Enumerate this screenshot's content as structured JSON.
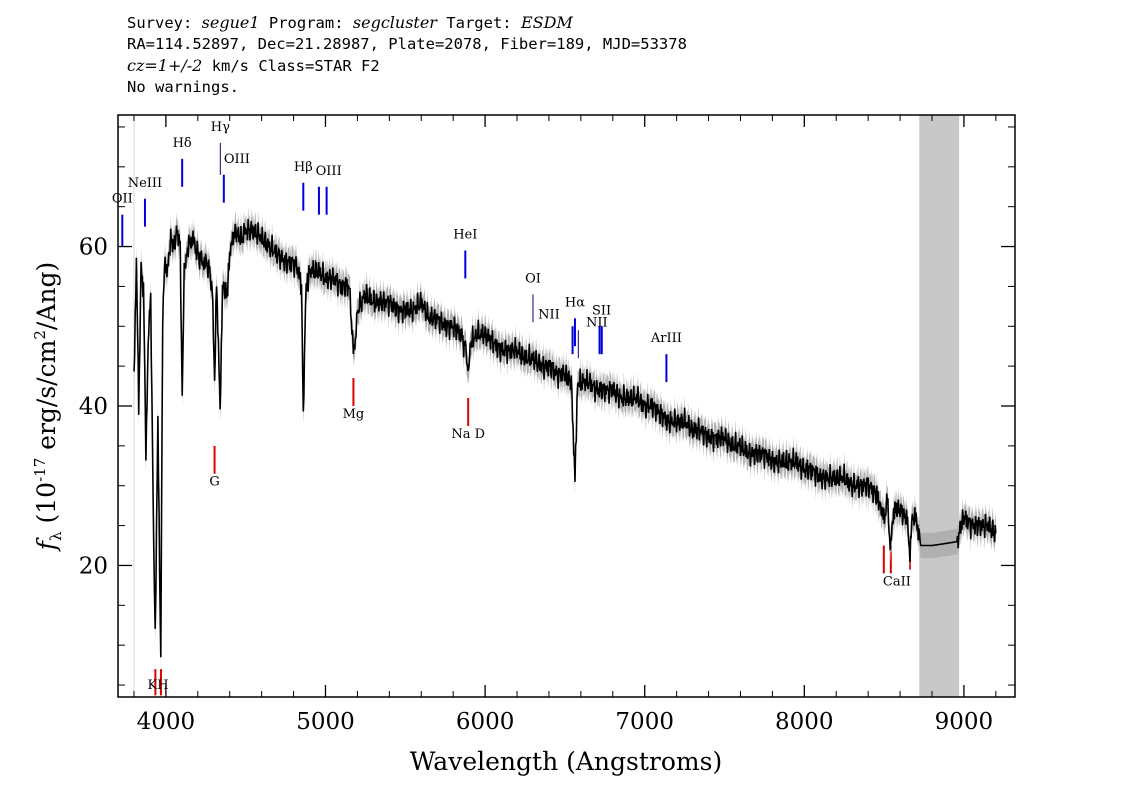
{
  "header": {
    "survey_label": "Survey:",
    "survey": "segue1",
    "program_label": "Program:",
    "program": "segcluster",
    "target_label": "Target:",
    "target": "ESDM",
    "line2": "RA=114.52897, Dec=21.28987, Plate=2078, Fiber=189, MJD=53378",
    "cz": "cz=1+/-2",
    "cz_rest": " km/s Class=STAR F2",
    "line4": "No warnings."
  },
  "chart_data": {
    "type": "line",
    "xlabel": "Wavelength (Angstroms)",
    "ylabel": "f_λ (10^-17 erg/s/cm^2/Ang)",
    "xlim": [
      3700,
      9320
    ],
    "ylim": [
      3.5,
      76.5
    ],
    "xticks": [
      4000,
      5000,
      6000,
      7000,
      8000,
      9000
    ],
    "yticks": [
      20,
      40,
      60
    ],
    "grid": false,
    "masked_region": [
      8720,
      8970
    ],
    "series": [
      {
        "color": "#000000",
        "points": [
          [
            3800,
            44
          ],
          [
            3815,
            58
          ],
          [
            3830,
            40
          ],
          [
            3845,
            57
          ],
          [
            3860,
            55
          ],
          [
            3875,
            34
          ],
          [
            3889,
            48
          ],
          [
            3905,
            54
          ],
          [
            3920,
            28
          ],
          [
            3933,
            11
          ],
          [
            3950,
            38
          ],
          [
            3968,
            8
          ],
          [
            3980,
            52
          ],
          [
            3995,
            58
          ],
          [
            4010,
            57
          ],
          [
            4030,
            61
          ],
          [
            4050,
            60
          ],
          [
            4070,
            62
          ],
          [
            4090,
            60
          ],
          [
            4102,
            41
          ],
          [
            4115,
            57
          ],
          [
            4140,
            60
          ],
          [
            4170,
            61
          ],
          [
            4200,
            59
          ],
          [
            4230,
            58
          ],
          [
            4260,
            58
          ],
          [
            4290,
            55
          ],
          [
            4305,
            43
          ],
          [
            4318,
            56
          ],
          [
            4340,
            39
          ],
          [
            4355,
            55
          ],
          [
            4383,
            54
          ],
          [
            4400,
            59
          ],
          [
            4430,
            62
          ],
          [
            4470,
            61
          ],
          [
            4500,
            62
          ],
          [
            4550,
            62
          ],
          [
            4600,
            61
          ],
          [
            4650,
            60
          ],
          [
            4700,
            59
          ],
          [
            4750,
            58
          ],
          [
            4800,
            58
          ],
          [
            4830,
            57
          ],
          [
            4850,
            55
          ],
          [
            4861,
            38
          ],
          [
            4875,
            54
          ],
          [
            4900,
            57
          ],
          [
            4950,
            57
          ],
          [
            5000,
            56
          ],
          [
            5050,
            56
          ],
          [
            5100,
            55
          ],
          [
            5150,
            55
          ],
          [
            5170,
            48
          ],
          [
            5183,
            47
          ],
          [
            5200,
            52
          ],
          [
            5250,
            54
          ],
          [
            5300,
            53
          ],
          [
            5350,
            53
          ],
          [
            5400,
            53
          ],
          [
            5450,
            52
          ],
          [
            5500,
            52
          ],
          [
            5550,
            52
          ],
          [
            5600,
            53
          ],
          [
            5650,
            51
          ],
          [
            5700,
            51
          ],
          [
            5750,
            50
          ],
          [
            5800,
            50
          ],
          [
            5850,
            49
          ],
          [
            5880,
            47
          ],
          [
            5893,
            44
          ],
          [
            5910,
            48
          ],
          [
            5950,
            49
          ],
          [
            6000,
            49
          ],
          [
            6050,
            48
          ],
          [
            6100,
            47
          ],
          [
            6150,
            47
          ],
          [
            6200,
            47
          ],
          [
            6250,
            46
          ],
          [
            6300,
            46
          ],
          [
            6350,
            45
          ],
          [
            6400,
            45
          ],
          [
            6450,
            44
          ],
          [
            6500,
            44
          ],
          [
            6540,
            43
          ],
          [
            6563,
            31
          ],
          [
            6580,
            43
          ],
          [
            6600,
            43
          ],
          [
            6650,
            43
          ],
          [
            6700,
            42
          ],
          [
            6750,
            42
          ],
          [
            6800,
            42
          ],
          [
            6850,
            41
          ],
          [
            6900,
            41
          ],
          [
            6950,
            41
          ],
          [
            7000,
            40
          ],
          [
            7050,
            40
          ],
          [
            7100,
            39
          ],
          [
            7150,
            38
          ],
          [
            7200,
            38
          ],
          [
            7250,
            38
          ],
          [
            7300,
            37
          ],
          [
            7350,
            37
          ],
          [
            7400,
            36
          ],
          [
            7450,
            36
          ],
          [
            7500,
            36
          ],
          [
            7550,
            35
          ],
          [
            7600,
            35
          ],
          [
            7650,
            34
          ],
          [
            7700,
            34
          ],
          [
            7750,
            34
          ],
          [
            7800,
            33
          ],
          [
            7850,
            33
          ],
          [
            7900,
            33
          ],
          [
            7950,
            33
          ],
          [
            8000,
            32
          ],
          [
            8050,
            32
          ],
          [
            8100,
            31
          ],
          [
            8150,
            31
          ],
          [
            8200,
            31
          ],
          [
            8250,
            31
          ],
          [
            8300,
            30
          ],
          [
            8350,
            30
          ],
          [
            8400,
            30
          ],
          [
            8450,
            29
          ],
          [
            8498,
            26
          ],
          [
            8520,
            28
          ],
          [
            8542,
            22
          ],
          [
            8560,
            27
          ],
          [
            8600,
            27
          ],
          [
            8640,
            26
          ],
          [
            8662,
            22
          ],
          [
            8680,
            26
          ],
          [
            8700,
            26
          ],
          [
            8718,
            24
          ],
          [
            8730,
            22.5
          ],
          [
            8800,
            22.5
          ],
          [
            8900,
            22.8
          ],
          [
            8960,
            23
          ],
          [
            8980,
            25
          ],
          [
            9000,
            26
          ],
          [
            9050,
            25
          ],
          [
            9100,
            25
          ],
          [
            9150,
            25
          ],
          [
            9200,
            24
          ]
        ]
      }
    ],
    "emission_lines": [
      {
        "name": "OII",
        "wavelength": 3727
      },
      {
        "name": "NeIII",
        "wavelength": 3869
      },
      {
        "name": "Hδ",
        "wavelength": 4102
      },
      {
        "name": "Hγ",
        "wavelength": 4341
      },
      {
        "name": "OIII",
        "wavelength": 4363
      },
      {
        "name": "Hβ",
        "wavelength": 4861
      },
      {
        "name": "OIII",
        "wavelength": 4959
      },
      {
        "name": "OIII",
        "wavelength": 5007
      },
      {
        "name": "HeI",
        "wavelength": 5876
      },
      {
        "name": "OI",
        "wavelength": 6300
      },
      {
        "name": "NII",
        "wavelength": 6548
      },
      {
        "name": "Hα",
        "wavelength": 6563
      },
      {
        "name": "NII",
        "wavelength": 6584
      },
      {
        "name": "SII",
        "wavelength": 6717
      },
      {
        "name": "SII",
        "wavelength": 6731
      },
      {
        "name": "ArIII",
        "wavelength": 7136
      }
    ],
    "absorption_lines": [
      {
        "name": "K",
        "wavelength": 3934
      },
      {
        "name": "H",
        "wavelength": 3969
      },
      {
        "name": "G",
        "wavelength": 4305
      },
      {
        "name": "Mg",
        "wavelength": 5175
      },
      {
        "name": "Na D",
        "wavelength": 5894
      },
      {
        "name": "CaII",
        "wavelength": 8498
      },
      {
        "name": "CaII",
        "wavelength": 8542
      },
      {
        "name": "CaII",
        "wavelength": 8662
      }
    ],
    "colors": {
      "spectrum": "#000000",
      "error_band": "#b0b0b0",
      "emission": "#0000dd",
      "emission_thin": "#000080",
      "absorption": "#dd0000",
      "mask": "#c8c8c8"
    }
  }
}
